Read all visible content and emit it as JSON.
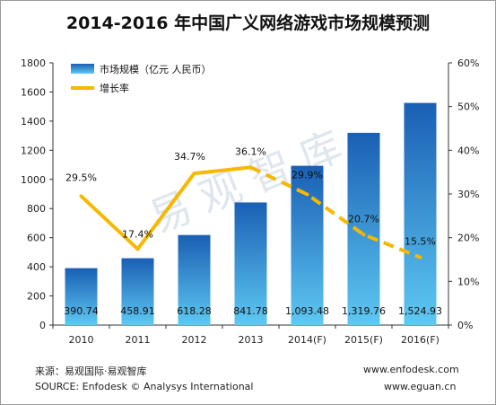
{
  "title": "2014-2016 年中国广义网络游戏市场规模预测",
  "chart_data": {
    "type": "bar",
    "categories": [
      "2010",
      "2011",
      "2012",
      "2013",
      "2014(F)",
      "2015(F)",
      "2016(F)"
    ],
    "series": [
      {
        "name": "市场规模（亿元 人民币）",
        "type": "bar",
        "axis": "left",
        "values": [
          390.74,
          458.91,
          618.28,
          841.78,
          1093.48,
          1319.76,
          1524.93
        ],
        "labels": [
          "390.74",
          "458.91",
          "618.28",
          "841.78",
          "1,093.48",
          "1,319.76",
          "1,524.93"
        ]
      },
      {
        "name": "增长率",
        "type": "line",
        "axis": "right",
        "values": [
          29.5,
          17.4,
          34.7,
          36.1,
          29.9,
          20.7,
          15.5
        ],
        "labels": [
          "29.5%",
          "17.4%",
          "34.7%",
          "36.1%",
          "29.9%",
          "20.7%",
          "15.5%"
        ],
        "forecast_from_index": 3
      }
    ],
    "y_left": {
      "min": 0,
      "max": 1800,
      "ticks": [
        "0",
        "200",
        "400",
        "600",
        "800",
        "1000",
        "1200",
        "1400",
        "1600",
        "1800"
      ]
    },
    "y_right": {
      "min": 0,
      "max": 60,
      "ticks": [
        "0%",
        "10%",
        "20%",
        "30%",
        "40%",
        "50%",
        "60%"
      ]
    },
    "legend_position": "top-left",
    "grid": false
  },
  "colors": {
    "bar_top": "#1a5fb4",
    "bar_bottom": "#5ec8f2",
    "line": "#f6b800",
    "axis": "#333333"
  },
  "watermark": "易观智库",
  "footer": {
    "source_cn": "来源：易观国际·易观智库",
    "source_en": "SOURCE: Enfodesk © Analysys International",
    "url1": "www.enfodesk.com",
    "url2": "www.eguan.cn"
  }
}
